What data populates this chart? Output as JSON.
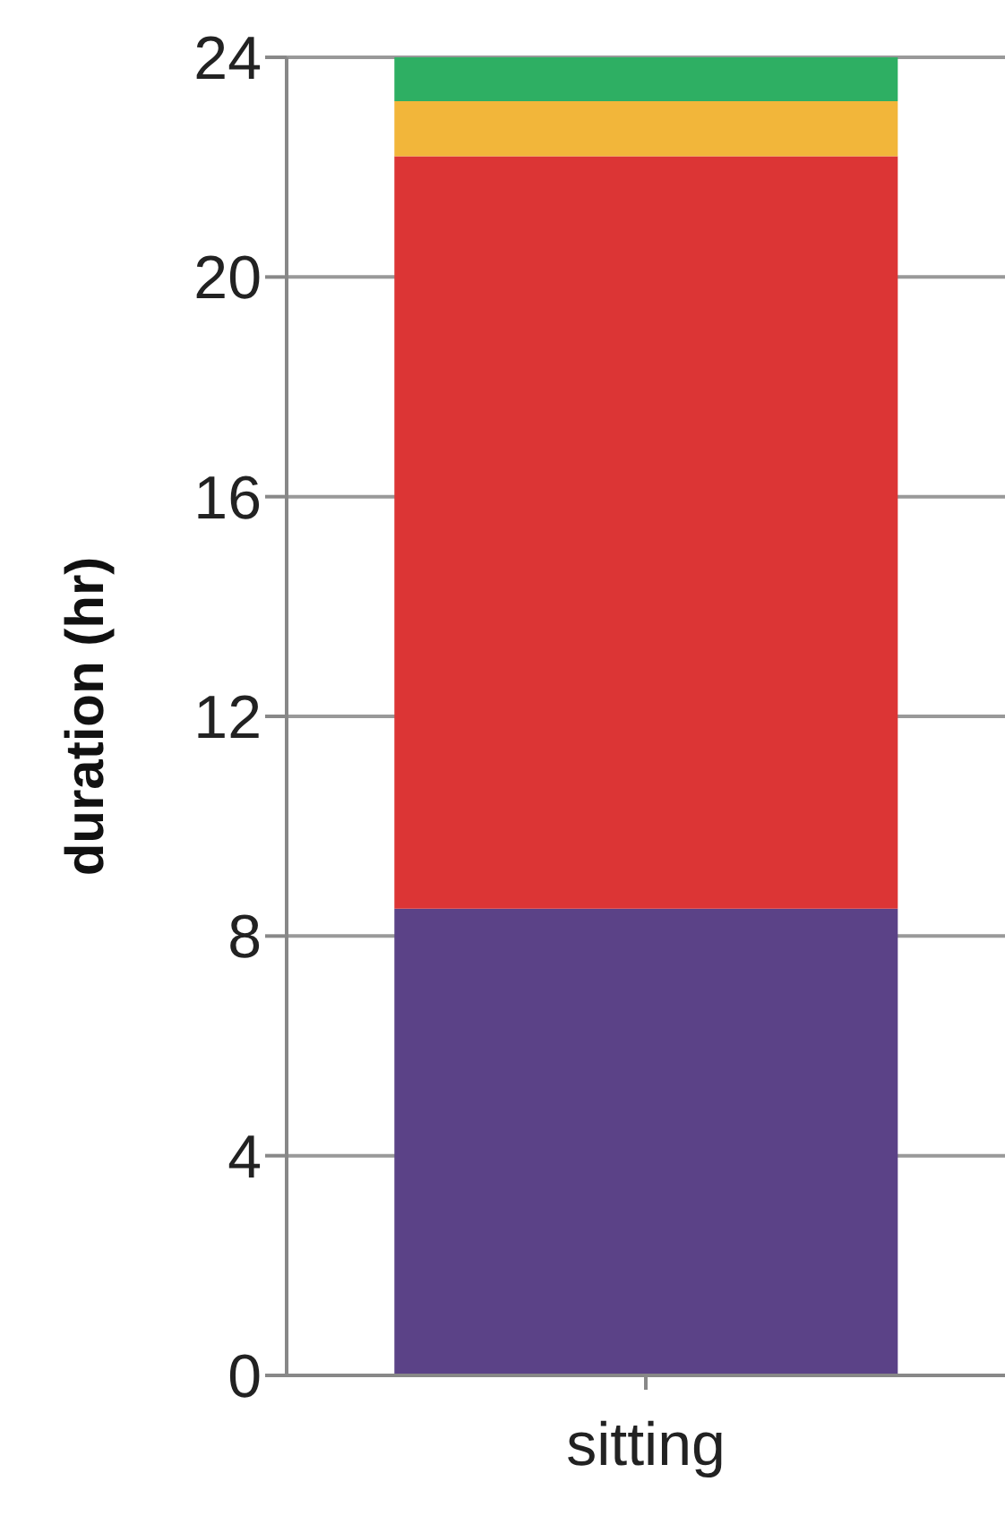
{
  "chart_data": {
    "type": "bar",
    "ylabel": "duration (hr)",
    "categories": [
      "sitting"
    ],
    "stacked": true,
    "series": [
      {
        "color": "#5b4287",
        "values": [
          8.5
        ]
      },
      {
        "color": "#dc3535",
        "values": [
          13.7
        ]
      },
      {
        "color": "#f2b63a",
        "values": [
          1.0
        ]
      },
      {
        "color": "#2eaf63",
        "values": [
          0.8
        ]
      }
    ],
    "ylim": [
      0,
      24
    ],
    "yticks": [
      0,
      4,
      8,
      12,
      16,
      20,
      24
    ],
    "grid": "y",
    "legend": false
  }
}
